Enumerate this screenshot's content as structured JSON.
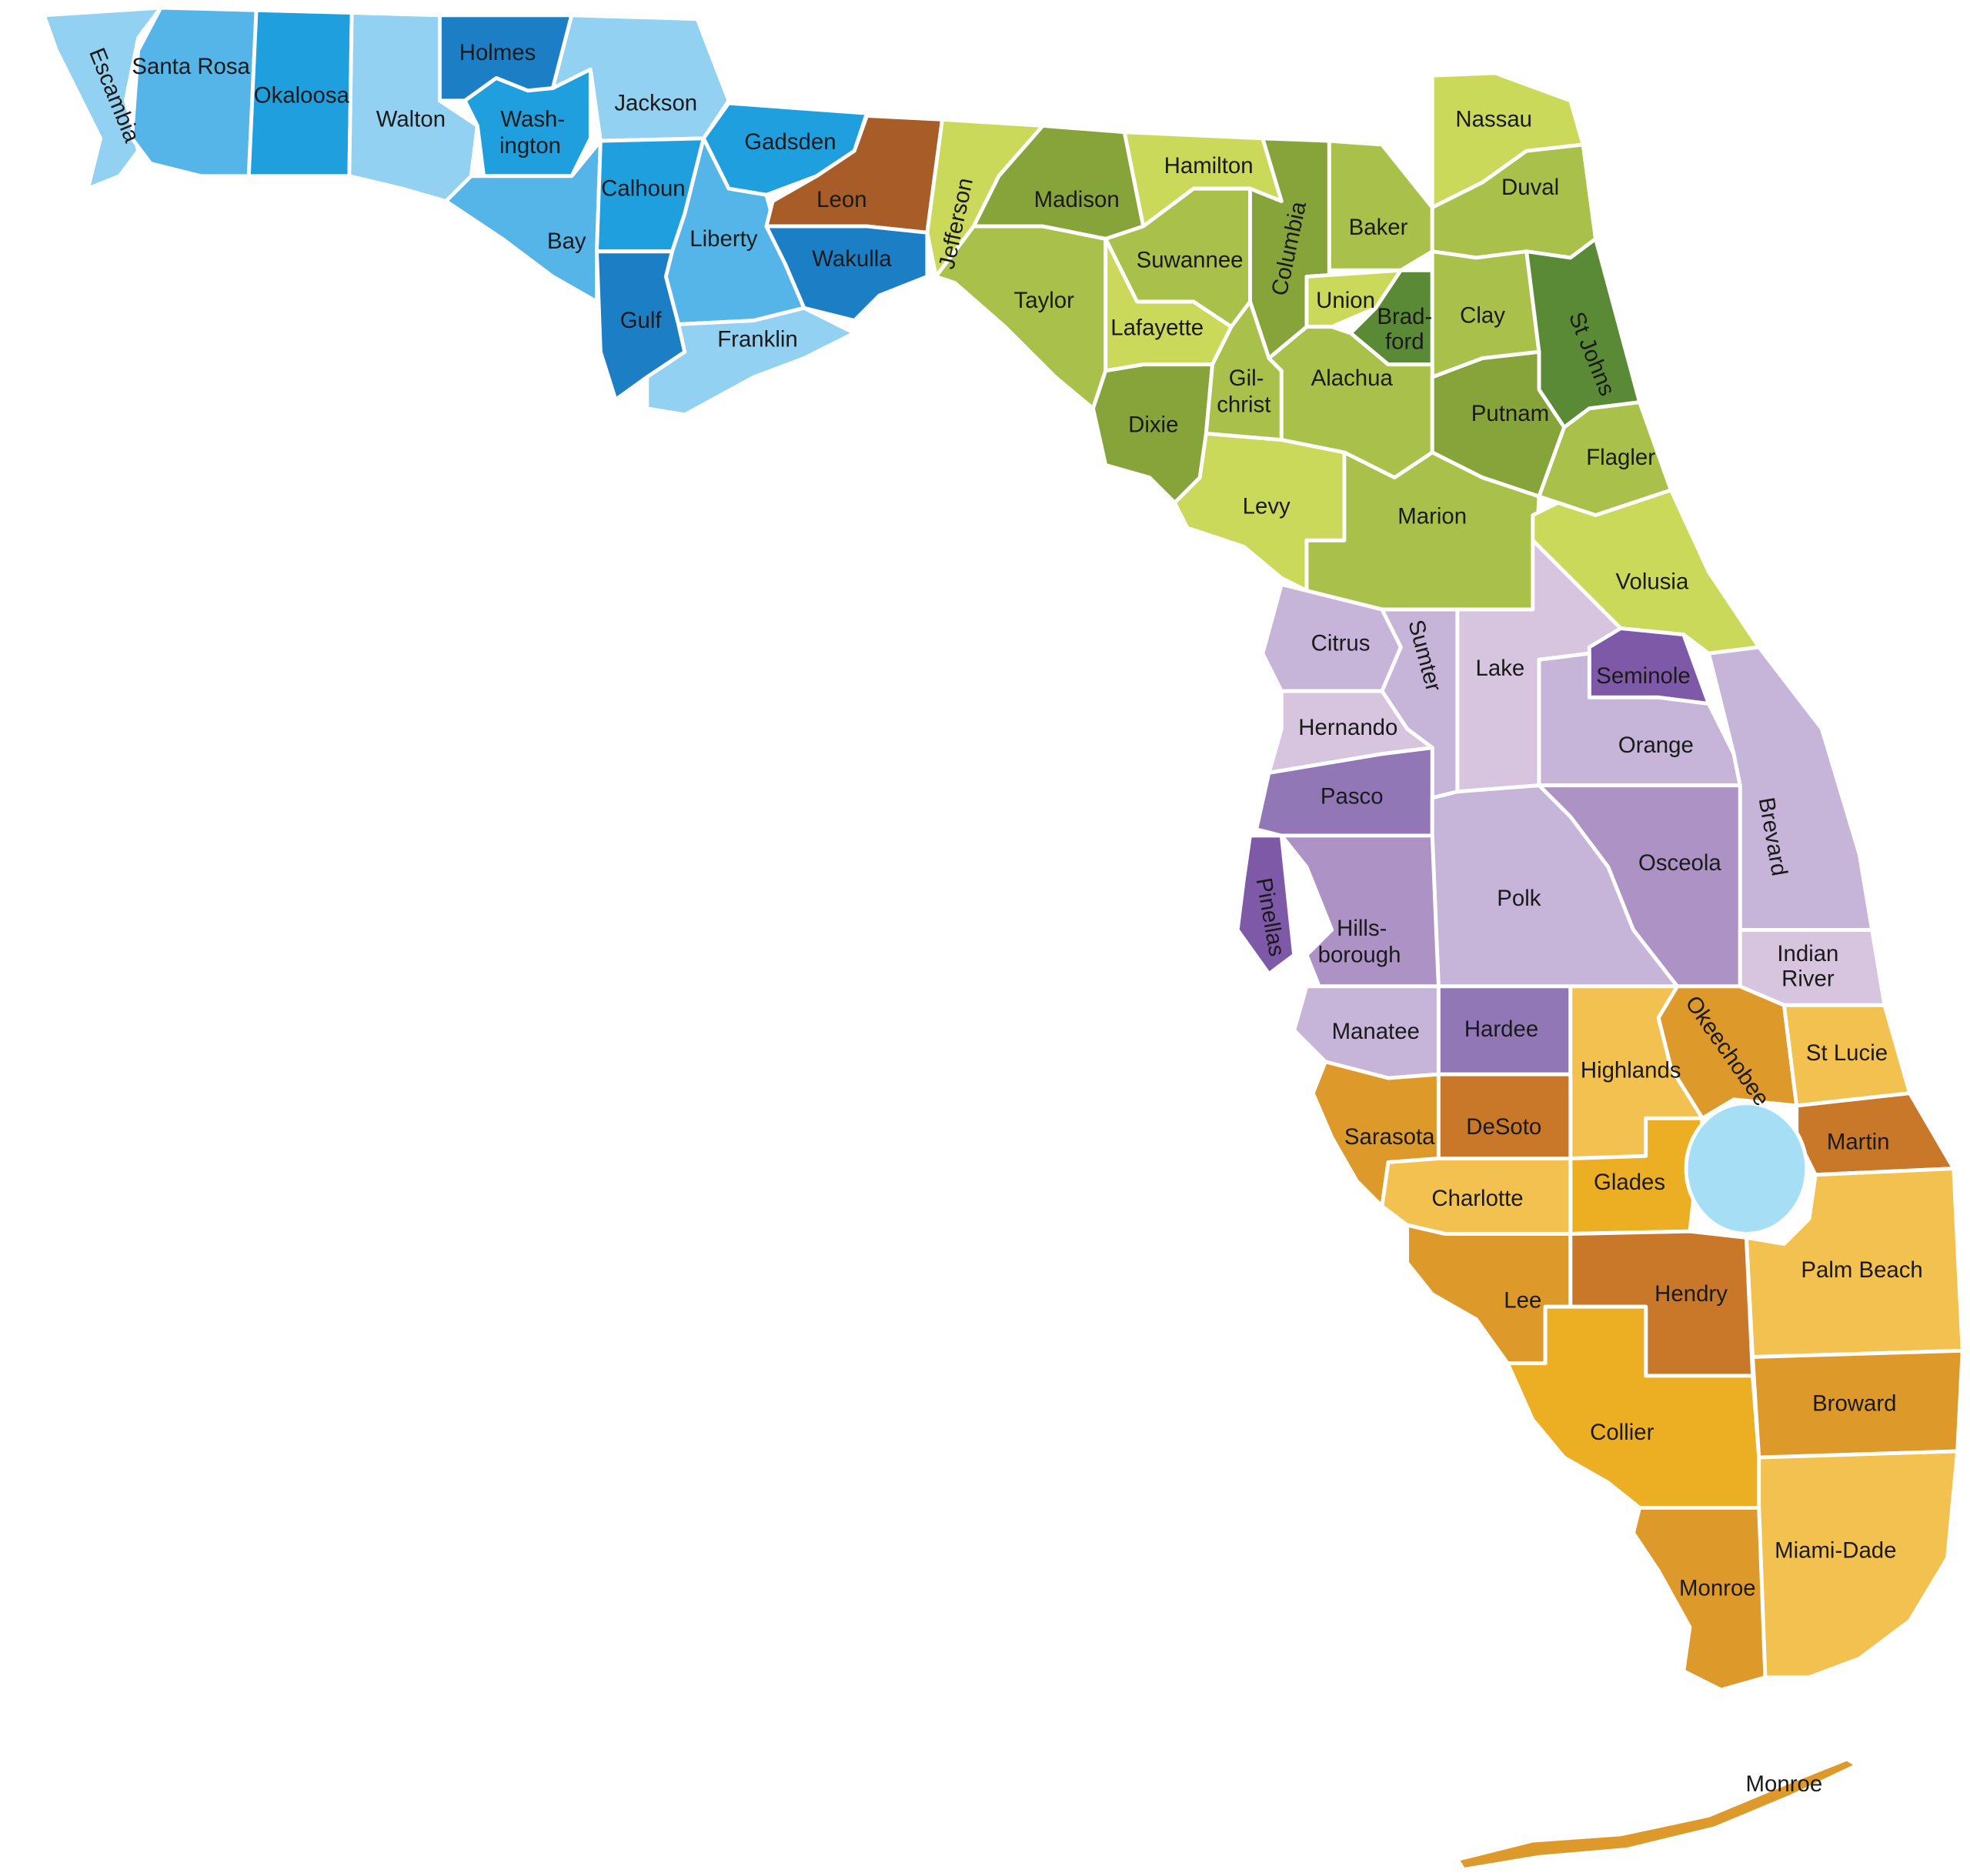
{
  "colors": {
    "blue_light": "#92d1f2",
    "blue_mid": "#55b5e9",
    "blue": "#209fde",
    "blue_dark": "#1c7fc6",
    "green_pale": "#cbd95a",
    "green_light": "#a9c14b",
    "green_mid": "#86a43a",
    "green_dark": "#5a8a35",
    "leon_brown": "#a85c28",
    "purple_pale": "#d7c5df",
    "purple_light": "#c7b4d9",
    "purple_mid": "#ad93c5",
    "purple": "#9277b7",
    "purple_dark": "#7d59a8",
    "orange_pale": "#f2c150",
    "orange": "#ecae23",
    "orange_mid": "#dd9a2a",
    "orange_dark": "#c9782a",
    "lake": "#a6dff5"
  },
  "counties": [
    {
      "name": "Escambia",
      "color": "blue_light"
    },
    {
      "name": "Santa Rosa",
      "color": "blue_mid"
    },
    {
      "name": "Okaloosa",
      "color": "blue"
    },
    {
      "name": "Walton",
      "color": "blue_light"
    },
    {
      "name": "Holmes",
      "color": "blue_dark"
    },
    {
      "name": "Wash-",
      "color": "blue"
    },
    {
      "name": "ington",
      "color": "blue"
    },
    {
      "name": "Jackson",
      "color": "blue_light"
    },
    {
      "name": "Bay",
      "color": "blue_mid"
    },
    {
      "name": "Calhoun",
      "color": "blue"
    },
    {
      "name": "Gadsden",
      "color": "blue"
    },
    {
      "name": "Liberty",
      "color": "blue_mid"
    },
    {
      "name": "Gulf",
      "color": "blue_dark"
    },
    {
      "name": "Franklin",
      "color": "blue_light"
    },
    {
      "name": "Leon",
      "color": "leon_brown"
    },
    {
      "name": "Wakulla",
      "color": "blue_dark"
    },
    {
      "name": "Jefferson",
      "color": "green_pale"
    },
    {
      "name": "Madison",
      "color": "green_mid"
    },
    {
      "name": "Hamilton",
      "color": "green_pale"
    },
    {
      "name": "Taylor",
      "color": "green_light"
    },
    {
      "name": "Suwannee",
      "color": "green_light"
    },
    {
      "name": "Lafayette",
      "color": "green_pale"
    },
    {
      "name": "Columbia",
      "color": "green_mid"
    },
    {
      "name": "Baker",
      "color": "green_light"
    },
    {
      "name": "Nassau",
      "color": "green_pale"
    },
    {
      "name": "Duval",
      "color": "green_light"
    },
    {
      "name": "Union",
      "color": "green_pale"
    },
    {
      "name": "Brad-",
      "color": "green_dark"
    },
    {
      "name": "ford",
      "color": "green_dark"
    },
    {
      "name": "Clay",
      "color": "green_light"
    },
    {
      "name": "St Johns",
      "color": "green_dark"
    },
    {
      "name": "Dixie",
      "color": "green_mid"
    },
    {
      "name": "Gil-",
      "color": "green_light"
    },
    {
      "name": "christ",
      "color": "green_light"
    },
    {
      "name": "Alachua",
      "color": "green_light"
    },
    {
      "name": "Putnam",
      "color": "green_mid"
    },
    {
      "name": "Flagler",
      "color": "green_light"
    },
    {
      "name": "Levy",
      "color": "green_pale"
    },
    {
      "name": "Marion",
      "color": "green_light"
    },
    {
      "name": "Volusia",
      "color": "green_pale"
    },
    {
      "name": "Citrus",
      "color": "purple_light"
    },
    {
      "name": "Sumter",
      "color": "purple_light"
    },
    {
      "name": "Lake",
      "color": "purple_pale"
    },
    {
      "name": "Seminole",
      "color": "purple_dark"
    },
    {
      "name": "Hernando",
      "color": "purple_pale"
    },
    {
      "name": "Orange",
      "color": "purple_light"
    },
    {
      "name": "Pasco",
      "color": "purple"
    },
    {
      "name": "Brevard",
      "color": "purple_light"
    },
    {
      "name": "Pinellas",
      "color": "purple_dark"
    },
    {
      "name": "Osceola",
      "color": "purple_mid"
    },
    {
      "name": "Polk",
      "color": "purple_light"
    },
    {
      "name": "Hills-",
      "color": "purple_mid"
    },
    {
      "name": "borough",
      "color": "purple_mid"
    },
    {
      "name": "Indian",
      "color": "purple_pale"
    },
    {
      "name": "River",
      "color": "purple_pale"
    },
    {
      "name": "Manatee",
      "color": "purple_light"
    },
    {
      "name": "Hardee",
      "color": "purple"
    },
    {
      "name": "Okeechobee",
      "color": "orange_mid"
    },
    {
      "name": "St Lucie",
      "color": "orange_pale"
    },
    {
      "name": "Highlands",
      "color": "orange_pale"
    },
    {
      "name": "Sarasota",
      "color": "orange_mid"
    },
    {
      "name": "DeSoto",
      "color": "orange_dark"
    },
    {
      "name": "Martin",
      "color": "orange_dark"
    },
    {
      "name": "Glades",
      "color": "orange"
    },
    {
      "name": "Charlotte",
      "color": "orange_pale"
    },
    {
      "name": "Palm Beach",
      "color": "orange_pale"
    },
    {
      "name": "Lee",
      "color": "orange_mid"
    },
    {
      "name": "Hendry",
      "color": "orange_dark"
    },
    {
      "name": "Broward",
      "color": "orange_mid"
    },
    {
      "name": "Collier",
      "color": "orange"
    },
    {
      "name": "Miami-Dade",
      "color": "orange_pale"
    },
    {
      "name": "Monroe",
      "color": "orange_mid"
    },
    {
      "name": "Monroe",
      "color": "orange_mid"
    }
  ]
}
